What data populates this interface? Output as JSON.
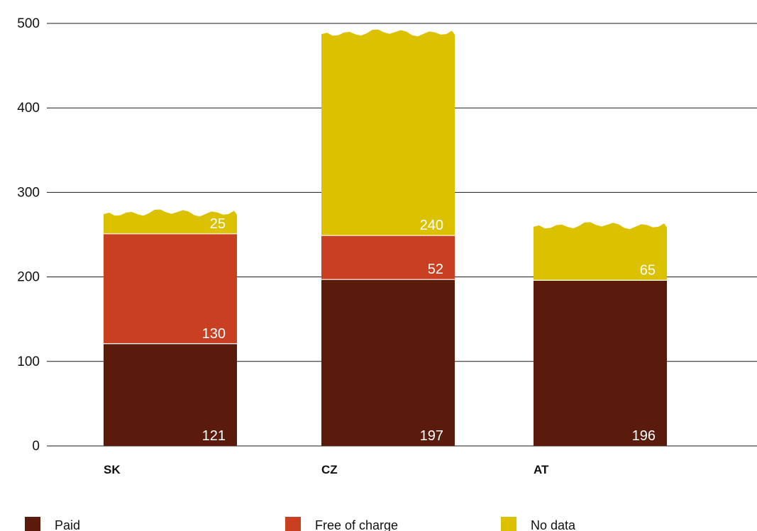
{
  "chart_data": {
    "type": "bar",
    "stacked": true,
    "categories": [
      "SK",
      "CZ",
      "AT"
    ],
    "series": [
      {
        "name": "Paid",
        "color": "#5a1a0c",
        "values": [
          121,
          197,
          196
        ]
      },
      {
        "name": "Free of charge",
        "color": "#c93f22",
        "values": [
          130,
          52,
          null
        ]
      },
      {
        "name": "No data",
        "color": "#dbc100",
        "values": [
          25,
          240,
          65
        ]
      }
    ],
    "ylim": [
      0,
      500
    ],
    "yticks": [
      "0",
      "100",
      "200",
      "300",
      "400",
      "500"
    ],
    "grid": true,
    "legend_position": "bottom"
  }
}
